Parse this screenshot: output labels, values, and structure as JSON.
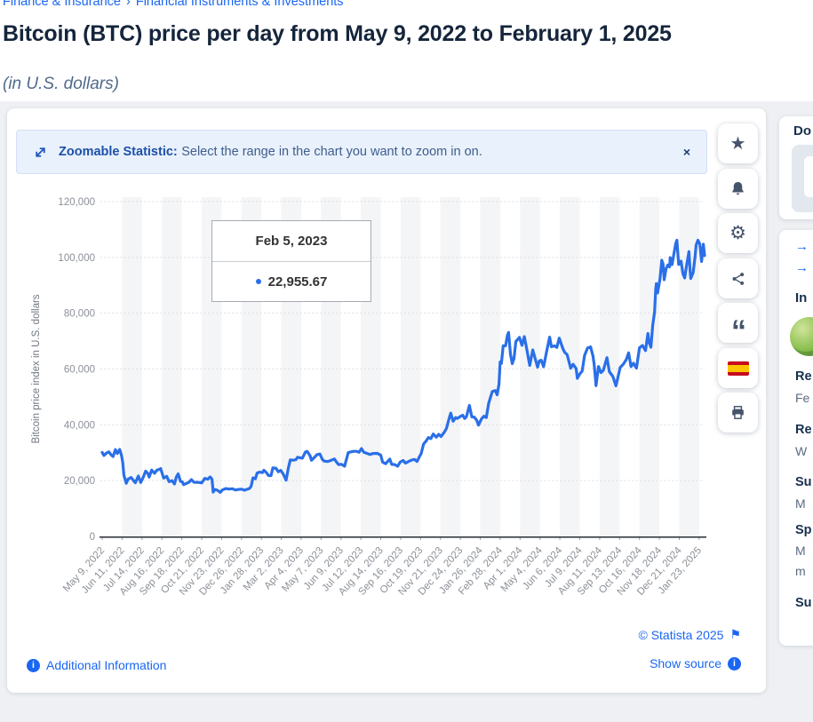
{
  "breadcrumb": {
    "items": [
      "Finance & Insurance",
      "Financial Instruments & Investments"
    ],
    "separator": "›"
  },
  "header": {
    "title": "Bitcoin (BTC) price per day from May 9, 2022 to February 1, 2025",
    "subtitle": "(in U.S. dollars)"
  },
  "banner": {
    "bold": "Zoomable Statistic:",
    "text": "Select the range in the chart you want to zoom in on.",
    "close_glyph": "×"
  },
  "tooltip": {
    "date": "Feb 5, 2023",
    "value": "22,955.67"
  },
  "footer": {
    "copyright": "© Statista 2025",
    "show_source": "Show source",
    "additional_info": "Additional Information"
  },
  "glyphs": {
    "star": "★",
    "gear": "⚙",
    "quote": "“",
    "flag_pennant": "⚑",
    "arrow_right": "→",
    "info_i": "i"
  },
  "side_panel": {
    "download_heading": "Do",
    "link1": "→",
    "link2": "→",
    "info_heading": "In",
    "fields": [
      {
        "label": "Re",
        "value": "Fe"
      },
      {
        "label": "Re",
        "value": "W"
      },
      {
        "label": "Su",
        "value": "M"
      },
      {
        "label": "Sp",
        "value": "M",
        "value2": "m"
      },
      {
        "label": "Su",
        "value": ""
      }
    ]
  },
  "colors": {
    "line_blue": "#2a6fe8",
    "accent_blue": "#1a66f2",
    "stripe_gray": "#f4f5f7",
    "grid_gray": "#d5d7da"
  },
  "chart_data": {
    "type": "line",
    "title": "Bitcoin (BTC) price per day from May 9, 2022 to February 1, 2025",
    "ylabel": "Bitcoin price index in U.S. dollars",
    "ylim": [
      0,
      120000
    ],
    "xlim_days": [
      0,
      999
    ],
    "grid": "dotted-horizontal",
    "legend": "none",
    "y_ticks": [
      "0",
      "20,000",
      "40,000",
      "60,000",
      "80,000",
      "100,000",
      "120,000"
    ],
    "x_tick_interval_days": 33,
    "x_labels": [
      "May 9, 2022",
      "Jun 11, 2022",
      "Jul 14, 2022",
      "Aug 16, 2022",
      "Sep 18, 2022",
      "Oct 21, 2022",
      "Nov 23, 2022",
      "Dec 26, 2022",
      "Jan 28, 2023",
      "Mar 2, 2023",
      "Apr 4, 2023",
      "May 7, 2023",
      "Jun 9, 2023",
      "Jul 12, 2023",
      "Aug 14, 2023",
      "Sep 16, 2023",
      "Oct 19, 2023",
      "Nov 21, 2023",
      "Dec 24, 2023",
      "Jan 26, 2024",
      "Feb 28, 2024",
      "Apr 1, 2024",
      "May 4, 2024",
      "Jun 6, 2024",
      "Jul 9, 2024",
      "Aug 11, 2024",
      "Sep 13, 2024",
      "Oct 16, 2024",
      "Nov 18, 2024",
      "Dec 21, 2024",
      "Jan 23, 2025"
    ],
    "highlighted_point": {
      "date": "Feb 5, 2023",
      "day": 272,
      "value": 22955.67
    },
    "points": [
      [
        0,
        30100
      ],
      [
        3,
        29000
      ],
      [
        7,
        29850
      ],
      [
        11,
        30300
      ],
      [
        15,
        29200
      ],
      [
        18,
        28630
      ],
      [
        22,
        31100
      ],
      [
        25,
        29700
      ],
      [
        29,
        31150
      ],
      [
        32,
        29100
      ],
      [
        34,
        26600
      ],
      [
        36,
        22000
      ],
      [
        40,
        19020
      ],
      [
        43,
        20550
      ],
      [
        48,
        21100
      ],
      [
        52,
        19985
      ],
      [
        55,
        19240
      ],
      [
        60,
        21640
      ],
      [
        64,
        19330
      ],
      [
        68,
        21200
      ],
      [
        72,
        23390
      ],
      [
        76,
        22450
      ],
      [
        78,
        21250
      ],
      [
        82,
        23770
      ],
      [
        87,
        22620
      ],
      [
        91,
        23810
      ],
      [
        94,
        23950
      ],
      [
        97,
        24320
      ],
      [
        102,
        20880
      ],
      [
        107,
        21560
      ],
      [
        111,
        19620
      ],
      [
        116,
        19970
      ],
      [
        120,
        18790
      ],
      [
        123,
        21360
      ],
      [
        126,
        22400
      ],
      [
        130,
        19700
      ],
      [
        133,
        19550
      ],
      [
        135,
        18550
      ],
      [
        139,
        18920
      ],
      [
        144,
        19430
      ],
      [
        148,
        20340
      ],
      [
        152,
        19420
      ],
      [
        157,
        19380
      ],
      [
        162,
        19330
      ],
      [
        165,
        19170
      ],
      [
        170,
        20770
      ],
      [
        175,
        20490
      ],
      [
        179,
        21300
      ],
      [
        182,
        20600
      ],
      [
        183,
        18540
      ],
      [
        184,
        15880
      ],
      [
        187,
        16800
      ],
      [
        191,
        16540
      ],
      [
        196,
        15780
      ],
      [
        199,
        16600
      ],
      [
        205,
        17170
      ],
      [
        210,
        16970
      ],
      [
        216,
        17090
      ],
      [
        221,
        16630
      ],
      [
        226,
        16830
      ],
      [
        231,
        16920
      ],
      [
        236,
        16550
      ],
      [
        240,
        16860
      ],
      [
        244,
        17130
      ],
      [
        247,
        17940
      ],
      [
        250,
        20980
      ],
      [
        254,
        20670
      ],
      [
        257,
        22720
      ],
      [
        261,
        23060
      ],
      [
        266,
        22840
      ],
      [
        268,
        23720
      ],
      [
        272,
        22955.67
      ],
      [
        276,
        21800
      ],
      [
        280,
        21780
      ],
      [
        283,
        24570
      ],
      [
        288,
        24450
      ],
      [
        292,
        23180
      ],
      [
        296,
        23640
      ],
      [
        300,
        22430
      ],
      [
        305,
        20160
      ],
      [
        309,
        24750
      ],
      [
        312,
        27400
      ],
      [
        317,
        27310
      ],
      [
        321,
        27460
      ],
      [
        324,
        28350
      ],
      [
        328,
        28200
      ],
      [
        332,
        28040
      ],
      [
        337,
        30240
      ],
      [
        340,
        30470
      ],
      [
        345,
        28820
      ],
      [
        347,
        27270
      ],
      [
        352,
        28310
      ],
      [
        356,
        29250
      ],
      [
        361,
        29530
      ],
      [
        365,
        27660
      ],
      [
        368,
        26990
      ],
      [
        374,
        26830
      ],
      [
        379,
        27230
      ],
      [
        385,
        27750
      ],
      [
        388,
        26820
      ],
      [
        392,
        25750
      ],
      [
        397,
        25850
      ],
      [
        402,
        25130
      ],
      [
        408,
        30030
      ],
      [
        412,
        30270
      ],
      [
        417,
        30480
      ],
      [
        422,
        30500
      ],
      [
        426,
        30170
      ],
      [
        430,
        31480
      ],
      [
        434,
        30150
      ],
      [
        438,
        29810
      ],
      [
        444,
        29350
      ],
      [
        449,
        29710
      ],
      [
        456,
        29770
      ],
      [
        462,
        29170
      ],
      [
        465,
        26600
      ],
      [
        470,
        26030
      ],
      [
        477,
        27730
      ],
      [
        480,
        25800
      ],
      [
        485,
        25750
      ],
      [
        490,
        25160
      ],
      [
        494,
        26610
      ],
      [
        499,
        27210
      ],
      [
        503,
        26250
      ],
      [
        509,
        26960
      ],
      [
        514,
        27410
      ],
      [
        518,
        27590
      ],
      [
        522,
        26870
      ],
      [
        526,
        28520
      ],
      [
        529,
        29680
      ],
      [
        533,
        33090
      ],
      [
        537,
        34160
      ],
      [
        541,
        35440
      ],
      [
        545,
        35050
      ],
      [
        549,
        36700
      ],
      [
        554,
        35570
      ],
      [
        558,
        36580
      ],
      [
        562,
        35810
      ],
      [
        567,
        37250
      ],
      [
        571,
        38690
      ],
      [
        575,
        41990
      ],
      [
        578,
        44170
      ],
      [
        582,
        41240
      ],
      [
        586,
        42600
      ],
      [
        589,
        42260
      ],
      [
        594,
        42990
      ],
      [
        598,
        43440
      ],
      [
        601,
        42270
      ],
      [
        604,
        42850
      ],
      [
        609,
        46950
      ],
      [
        613,
        42850
      ],
      [
        617,
        42740
      ],
      [
        621,
        41650
      ],
      [
        624,
        39880
      ],
      [
        629,
        42120
      ],
      [
        633,
        43080
      ],
      [
        637,
        42580
      ],
      [
        641,
        47750
      ],
      [
        644,
        49920
      ],
      [
        647,
        51940
      ],
      [
        652,
        52280
      ],
      [
        655,
        50730
      ],
      [
        658,
        54520
      ],
      [
        660,
        62500
      ],
      [
        662,
        61990
      ],
      [
        665,
        68330
      ],
      [
        669,
        68300
      ],
      [
        672,
        72080
      ],
      [
        674,
        73100
      ],
      [
        677,
        65310
      ],
      [
        680,
        61910
      ],
      [
        683,
        63780
      ],
      [
        686,
        69880
      ],
      [
        692,
        71330
      ],
      [
        696,
        68510
      ],
      [
        700,
        71630
      ],
      [
        704,
        67200
      ],
      [
        709,
        61280
      ],
      [
        714,
        66840
      ],
      [
        718,
        63750
      ],
      [
        722,
        60640
      ],
      [
        725,
        62890
      ],
      [
        728,
        63160
      ],
      [
        732,
        60790
      ],
      [
        737,
        66270
      ],
      [
        742,
        71440
      ],
      [
        745,
        67970
      ],
      [
        750,
        68300
      ],
      [
        754,
        67750
      ],
      [
        758,
        71080
      ],
      [
        764,
        67300
      ],
      [
        767,
        66010
      ],
      [
        771,
        65140
      ],
      [
        777,
        60280
      ],
      [
        781,
        61680
      ],
      [
        786,
        60170
      ],
      [
        788,
        56660
      ],
      [
        792,
        58230
      ],
      [
        796,
        59230
      ],
      [
        800,
        64870
      ],
      [
        805,
        67530
      ],
      [
        810,
        67900
      ],
      [
        814,
        64620
      ],
      [
        816,
        61420
      ],
      [
        819,
        54020
      ],
      [
        823,
        60880
      ],
      [
        827,
        58740
      ],
      [
        831,
        59500
      ],
      [
        837,
        64090
      ],
      [
        841,
        59030
      ],
      [
        847,
        57300
      ],
      [
        852,
        53950
      ],
      [
        856,
        57650
      ],
      [
        859,
        60570
      ],
      [
        864,
        61650
      ],
      [
        869,
        63330
      ],
      [
        873,
        65790
      ],
      [
        877,
        60840
      ],
      [
        881,
        62070
      ],
      [
        886,
        60280
      ],
      [
        890,
        66080
      ],
      [
        891,
        67610
      ],
      [
        896,
        68400
      ],
      [
        901,
        66600
      ],
      [
        905,
        72720
      ],
      [
        907,
        69480
      ],
      [
        910,
        67810
      ],
      [
        913,
        75640
      ],
      [
        916,
        80470
      ],
      [
        918,
        88700
      ],
      [
        919,
        90580
      ],
      [
        921,
        87250
      ],
      [
        925,
        92340
      ],
      [
        928,
        98997
      ],
      [
        930,
        97700
      ],
      [
        932,
        91985
      ],
      [
        935,
        95890
      ],
      [
        938,
        97280
      ],
      [
        941,
        96590
      ],
      [
        942,
        99920
      ],
      [
        945,
        97430
      ],
      [
        948,
        101170
      ],
      [
        951,
        104750
      ],
      [
        953,
        106140
      ],
      [
        956,
        97470
      ],
      [
        958,
        97755
      ],
      [
        960,
        98680
      ],
      [
        963,
        94160
      ],
      [
        966,
        92640
      ],
      [
        969,
        96890
      ],
      [
        973,
        102080
      ],
      [
        975,
        95040
      ],
      [
        976,
        92480
      ],
      [
        980,
        94530
      ],
      [
        983,
        99760
      ],
      [
        985,
        104460
      ],
      [
        988,
        106150
      ],
      [
        991,
        104820
      ],
      [
        994,
        98530
      ],
      [
        997,
        104720
      ],
      [
        999,
        100655
      ]
    ]
  }
}
